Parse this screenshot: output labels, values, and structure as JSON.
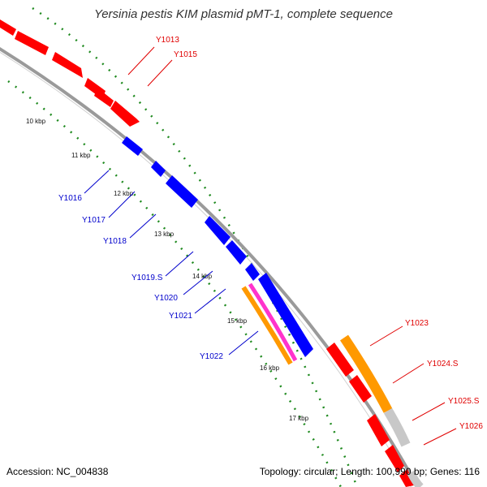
{
  "map": {
    "title": "Yersinia pestis KIM plasmid pMT-1, complete sequence",
    "footer_left": "Accession: NC_004838",
    "footer_right": "Topology: circular; Length: 100,990 bp; Genes: 116",
    "colors": {
      "backbone": "#909090",
      "ticks": "#1f8a1f",
      "forward_gene": "#ff0000",
      "reverse_gene": "#0000ff",
      "orange_feature": "#ff9900",
      "pink_feature": "#ff33cc",
      "grey_feature": "#c8c8c8"
    },
    "kbp_labels": [
      "10 kbp",
      "11 kbp",
      "12 kbp",
      "13 kbp",
      "14 kbp",
      "15 kbp",
      "16 kbp",
      "17 kbp"
    ],
    "gene_labels": [
      "Y1013",
      "Y1015",
      "Y1016",
      "Y1017",
      "Y1018",
      "Y1019.S",
      "Y1020",
      "Y1021",
      "Y1022",
      "Y1023",
      "Y1024.S",
      "Y1025.S",
      "Y1026"
    ]
  }
}
